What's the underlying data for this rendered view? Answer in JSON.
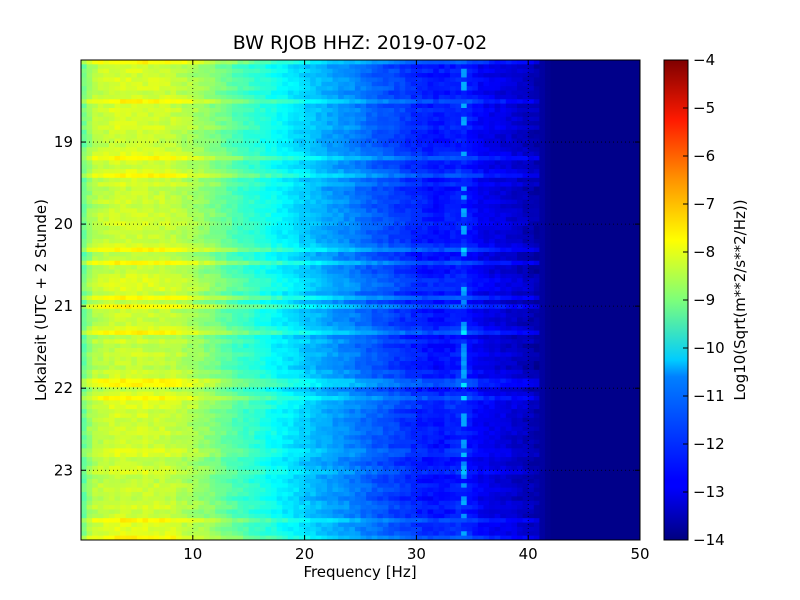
{
  "chart_data": {
    "type": "heatmap",
    "title": "BW RJOB HHZ: 2019-07-02",
    "xlabel": "Frequency [Hz]",
    "ylabel": "Lokalzeit (UTC + 2 Stunde)",
    "xlim": [
      0,
      50
    ],
    "ylim_hours": [
      18.0,
      23.85
    ],
    "y_inverted": true,
    "x_ticks": [
      10,
      20,
      30,
      40,
      50
    ],
    "x_tick_labels": [
      "10",
      "20",
      "30",
      "40",
      "50"
    ],
    "y_ticks": [
      19,
      20,
      21,
      22,
      23
    ],
    "y_tick_labels": [
      "19",
      "20",
      "21",
      "22",
      "23"
    ],
    "grid": true,
    "colormap": "jet",
    "colorbar": {
      "label": "Log10(Sqrt(m**2/s**2/Hz))",
      "range": [
        -14,
        -4
      ],
      "ticks": [
        -4,
        -5,
        -6,
        -7,
        -8,
        -9,
        -10,
        -11,
        -12,
        -13,
        -14
      ],
      "tick_labels": [
        "−4",
        "−5",
        "−6",
        "−7",
        "−8",
        "−9",
        "−10",
        "−11",
        "−12",
        "−13",
        "−14"
      ]
    },
    "mean_spectrum": {
      "frequency_hz": [
        0,
        1,
        3,
        5,
        8,
        10,
        12,
        14,
        16,
        18,
        20,
        22,
        24,
        26,
        28,
        30,
        32,
        34,
        36,
        38,
        40,
        41,
        42,
        50
      ],
      "log10_asd": [
        -9.4,
        -8.5,
        -8.2,
        -8.2,
        -8.3,
        -8.6,
        -9.0,
        -9.5,
        -9.9,
        -10.3,
        -10.7,
        -11.1,
        -11.4,
        -11.8,
        -12.1,
        -12.4,
        -12.6,
        -12.4,
        -12.9,
        -13.1,
        -13.4,
        -13.6,
        -13.9,
        -13.9
      ]
    },
    "spectral_line_hz": 34.3
  }
}
